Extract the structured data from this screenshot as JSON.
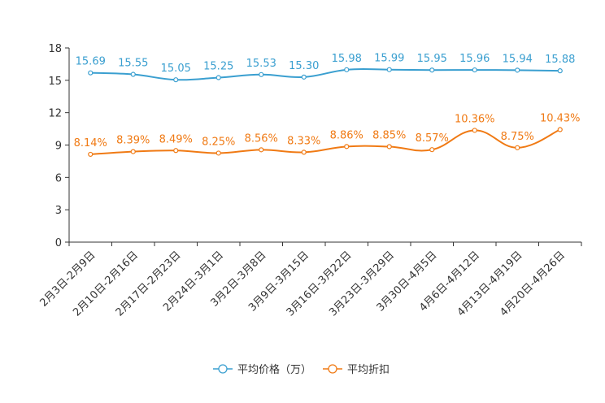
{
  "chart_data": {
    "type": "line",
    "title": "",
    "xlabel": "",
    "ylabel": "",
    "ylim": [
      0,
      18
    ],
    "yticks": [
      0,
      3,
      6,
      9,
      12,
      15,
      18
    ],
    "grid": false,
    "legend_position": "bottom",
    "categories": [
      "2月3日-2月9日",
      "2月10日-2月16日",
      "2月17日-2月23日",
      "2月24日-3月1日",
      "3月2日-3月8日",
      "3月9日-3月15日",
      "3月16日-3月22日",
      "3月23日-3月29日",
      "3月30日-4月5日",
      "4月6日-4月12日",
      "4月13日-4月19日",
      "4月20日-4月26日"
    ],
    "series": [
      {
        "name": "平均价格（万）",
        "color": "#3a9fd0",
        "values": [
          15.69,
          15.55,
          15.05,
          15.25,
          15.53,
          15.3,
          15.98,
          15.99,
          15.95,
          15.96,
          15.94,
          15.88
        ],
        "labels": [
          "15.69",
          "15.55",
          "15.05",
          "15.25",
          "15.53",
          "15.30",
          "15.98",
          "15.99",
          "15.95",
          "15.96",
          "15.94",
          "15.88"
        ]
      },
      {
        "name": "平均折扣",
        "color": "#f07a14",
        "values": [
          8.14,
          8.39,
          8.49,
          8.25,
          8.56,
          8.33,
          8.86,
          8.85,
          8.57,
          10.36,
          8.75,
          10.43
        ],
        "labels": [
          "8.14%",
          "8.39%",
          "8.49%",
          "8.25%",
          "8.56%",
          "8.33%",
          "8.86%",
          "8.85%",
          "8.57%",
          "10.36%",
          "8.75%",
          "10.43%"
        ]
      }
    ]
  }
}
